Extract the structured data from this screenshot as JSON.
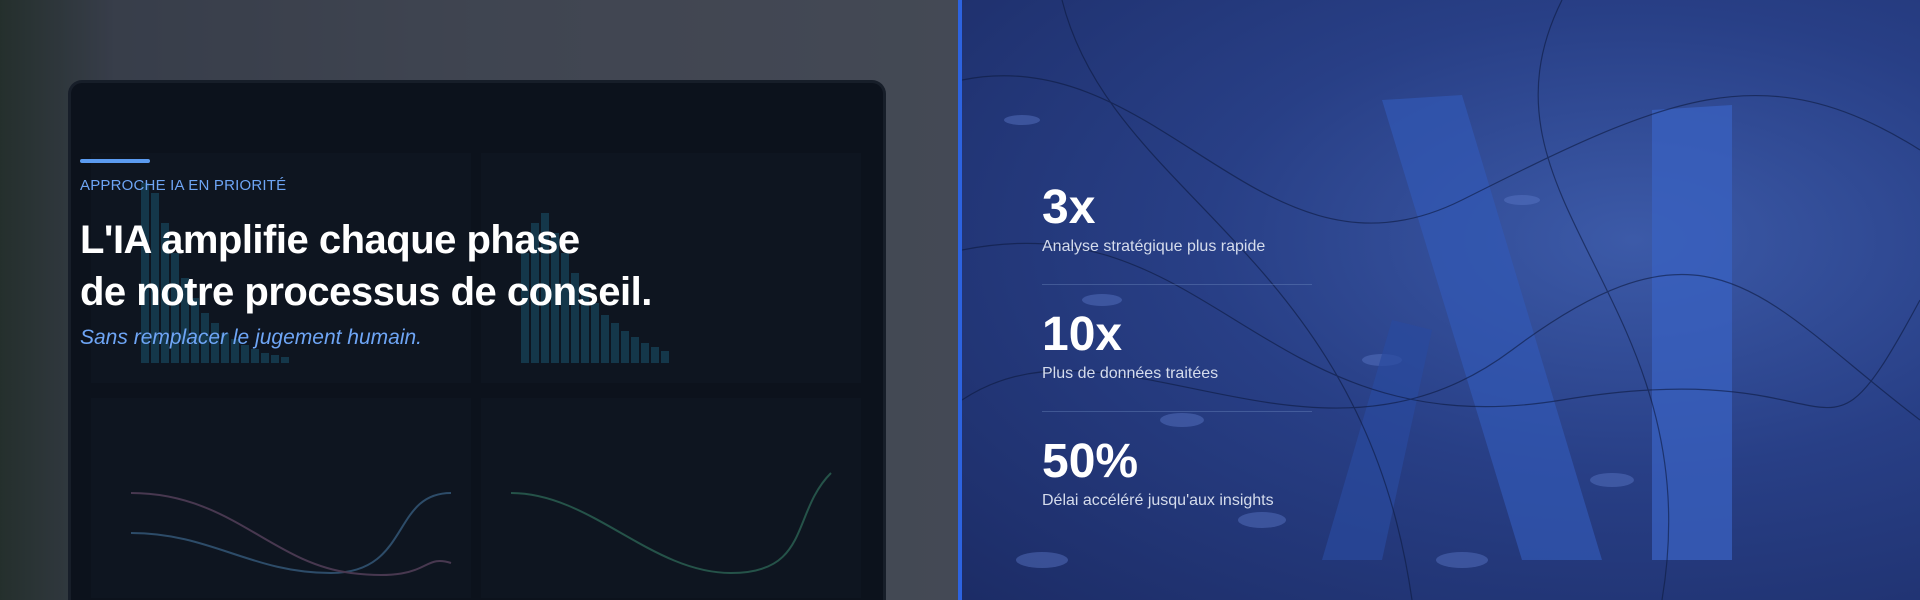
{
  "hero": {
    "eyebrow": "APPROCHE IA EN PRIORITÉ",
    "title_line1": "L'IA amplifie chaque phase",
    "title_line2": "de notre processus de conseil.",
    "subtitle": "Sans remplacer le jugement humain.",
    "accent_color": "#2d63e0"
  },
  "stats": [
    {
      "value": "3x",
      "label": "Analyse stratégique plus rapide"
    },
    {
      "value": "10x",
      "label": "Plus de données traitées"
    },
    {
      "value": "50%",
      "label": "Délai accéléré jusqu'aux insights"
    }
  ]
}
